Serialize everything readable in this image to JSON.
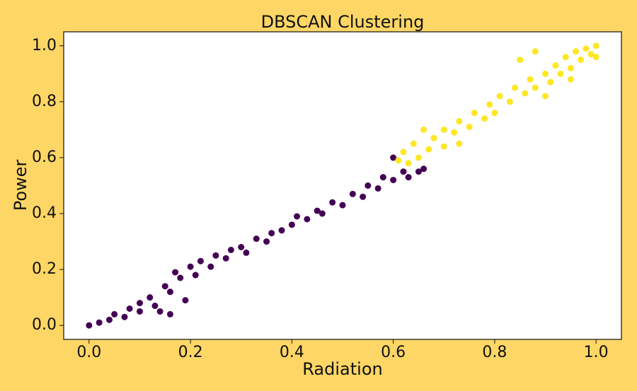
{
  "chart_data": {
    "type": "scatter",
    "title": "DBSCAN Clustering",
    "x_label": "Radiation",
    "y_label": "Power",
    "xlim": [
      -0.05,
      1.05
    ],
    "ylim": [
      -0.05,
      1.05
    ],
    "xticks": [
      {
        "value": 0,
        "label": "0.0"
      },
      0.2,
      0.4,
      0.6,
      0.8,
      {
        "value": 1,
        "label": "1.0"
      }
    ],
    "yticks": [
      {
        "value": 0,
        "label": "0.0"
      },
      0.2,
      0.4,
      0.6,
      0.8,
      {
        "value": 1,
        "label": "1.0"
      }
    ],
    "grid": false,
    "series": [
      {
        "color": "#440154",
        "x": [
          0.0,
          0.02,
          0.04,
          0.05,
          0.07,
          0.08,
          0.1,
          0.1,
          0.12,
          0.13,
          0.14,
          0.15,
          0.16,
          0.17,
          0.18,
          0.2,
          0.21,
          0.22,
          0.24,
          0.25,
          0.27,
          0.28,
          0.3,
          0.31,
          0.33,
          0.35,
          0.36,
          0.38,
          0.4,
          0.41,
          0.43,
          0.45,
          0.46,
          0.48,
          0.5,
          0.52,
          0.54,
          0.55,
          0.57,
          0.58,
          0.6,
          0.62,
          0.63,
          0.65,
          0.6,
          0.66,
          0.19,
          0.16
        ],
        "values": [
          0.0,
          0.01,
          0.02,
          0.04,
          0.03,
          0.06,
          0.05,
          0.08,
          0.1,
          0.07,
          0.05,
          0.14,
          0.12,
          0.19,
          0.17,
          0.21,
          0.18,
          0.23,
          0.21,
          0.25,
          0.24,
          0.27,
          0.28,
          0.26,
          0.31,
          0.3,
          0.33,
          0.34,
          0.36,
          0.39,
          0.38,
          0.41,
          0.4,
          0.44,
          0.43,
          0.47,
          0.46,
          0.5,
          0.49,
          0.53,
          0.52,
          0.55,
          0.53,
          0.55,
          0.6,
          0.56,
          0.09,
          0.04
        ]
      },
      {
        "color": "#fde725",
        "x": [
          0.61,
          0.62,
          0.63,
          0.64,
          0.65,
          0.67,
          0.68,
          0.7,
          0.7,
          0.72,
          0.73,
          0.75,
          0.76,
          0.78,
          0.79,
          0.8,
          0.81,
          0.83,
          0.84,
          0.86,
          0.87,
          0.88,
          0.9,
          0.91,
          0.92,
          0.93,
          0.94,
          0.95,
          0.96,
          0.97,
          0.98,
          0.99,
          1.0,
          1.0,
          0.85,
          0.88,
          0.66,
          0.73,
          0.9,
          0.95
        ],
        "values": [
          0.59,
          0.62,
          0.58,
          0.65,
          0.6,
          0.63,
          0.67,
          0.64,
          0.7,
          0.69,
          0.73,
          0.71,
          0.76,
          0.74,
          0.79,
          0.76,
          0.82,
          0.8,
          0.85,
          0.83,
          0.88,
          0.85,
          0.9,
          0.87,
          0.93,
          0.9,
          0.96,
          0.92,
          0.98,
          0.95,
          0.99,
          0.97,
          1.0,
          0.96,
          0.95,
          0.98,
          0.7,
          0.65,
          0.82,
          0.88
        ]
      }
    ]
  }
}
